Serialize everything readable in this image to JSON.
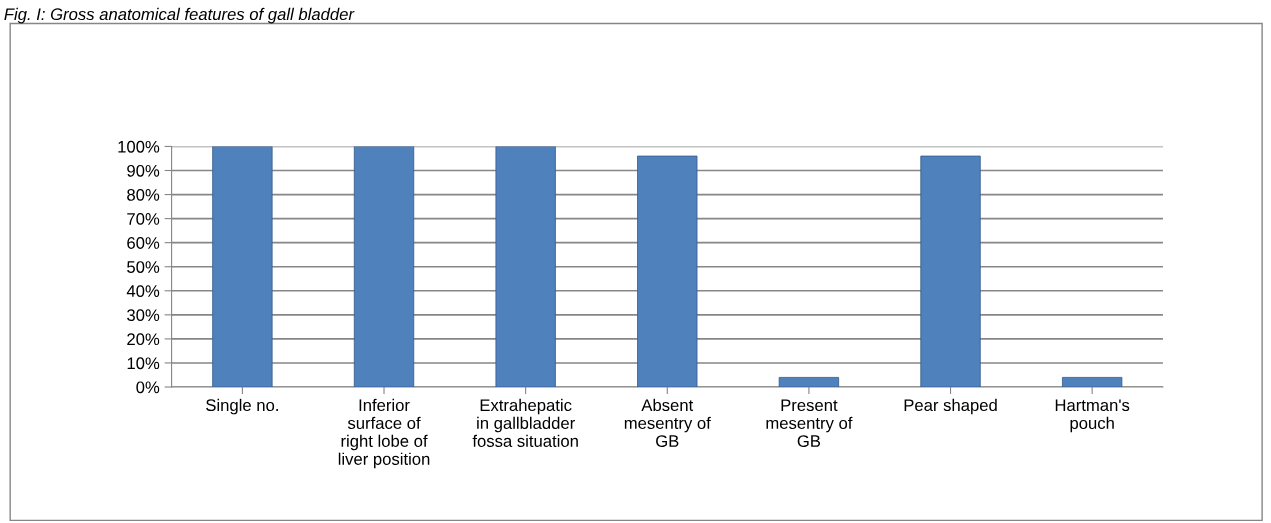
{
  "chart_data": {
    "type": "bar",
    "title": "Fig. I: Gross anatomical features of gall bladder",
    "categories": [
      "Single no.",
      "Inferior\nsurface of\nright lobe of\nliver position",
      "Extrahepatic\nin gallbladder\nfossa situation",
      "Absent\nmesentry of\nGB",
      "Present\nmesentry of\nGB",
      "Pear shaped",
      "Hartman's\npouch"
    ],
    "values": [
      100,
      100,
      100,
      96,
      4,
      96,
      4
    ],
    "color": "#4f81bd",
    "ylim": [
      0,
      100
    ],
    "yticks": [
      {
        "value": 0,
        "label": "0%"
      },
      {
        "value": 10,
        "label": "10%"
      },
      {
        "value": 20,
        "label": "20%"
      },
      {
        "value": 30,
        "label": "30%"
      },
      {
        "value": 40,
        "label": "40%"
      },
      {
        "value": 50,
        "label": "50%"
      },
      {
        "value": 60,
        "label": "60%"
      },
      {
        "value": 70,
        "label": "70%"
      },
      {
        "value": 80,
        "label": "80%"
      },
      {
        "value": 90,
        "label": "90%"
      },
      {
        "value": 100,
        "label": "100%"
      }
    ],
    "grid": "y"
  }
}
